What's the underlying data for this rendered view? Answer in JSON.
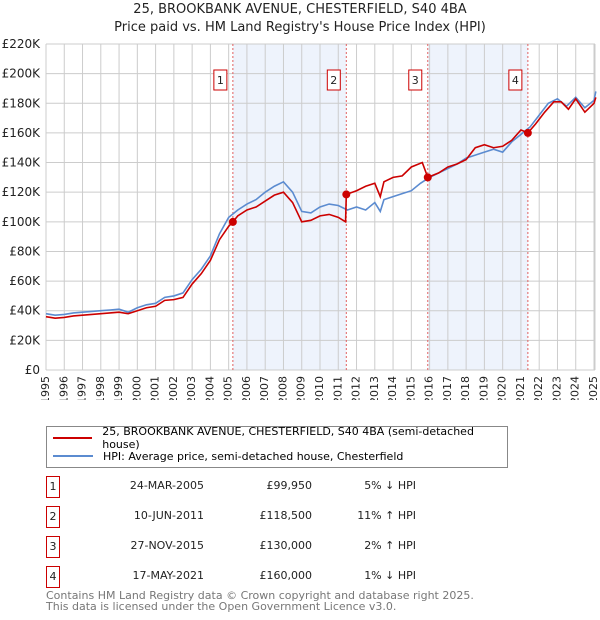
{
  "chart_data": {
    "type": "line",
    "title": "25, BROOKBANK AVENUE, CHESTERFIELD, S40 4BA",
    "subtitle": "Price paid vs. HM Land Registry's House Price Index (HPI)",
    "xlim": [
      1995,
      2025.2
    ],
    "ylim": [
      0,
      220000
    ],
    "yticks": [
      0,
      20000,
      40000,
      60000,
      80000,
      100000,
      120000,
      140000,
      160000,
      180000,
      200000,
      220000
    ],
    "ytick_labels": [
      "£0",
      "£20K",
      "£40K",
      "£60K",
      "£80K",
      "£100K",
      "£120K",
      "£140K",
      "£160K",
      "£180K",
      "£200K",
      "£220K"
    ],
    "xticks": [
      1995,
      1996,
      1997,
      1998,
      1999,
      2000,
      2001,
      2002,
      2003,
      2004,
      2005,
      2006,
      2007,
      2008,
      2009,
      2010,
      2011,
      2012,
      2013,
      2014,
      2015,
      2016,
      2017,
      2018,
      2019,
      2020,
      2021,
      2022,
      2023,
      2024,
      2025
    ],
    "grid": true,
    "shaded_ranges": [
      [
        2005.23,
        2011.44
      ],
      [
        2015.9,
        2021.38
      ]
    ],
    "series": [
      {
        "name": "25, BROOKBANK AVENUE, CHESTERFIELD, S40 4BA (semi-detached house)",
        "color": "#cc0000",
        "x": [
          1995,
          1995.5,
          1996,
          1996.5,
          1997,
          1997.5,
          1998,
          1998.5,
          1999,
          1999.5,
          2000,
          2000.5,
          2001,
          2001.5,
          2002,
          2002.5,
          2003,
          2003.5,
          2004,
          2004.5,
          2005,
          2005.23,
          2005.5,
          2006,
          2006.5,
          2007,
          2007.5,
          2008,
          2008.5,
          2009,
          2009.5,
          2010,
          2010.5,
          2011,
          2011.4,
          2011.44,
          2012,
          2012.5,
          2013,
          2013.3,
          2013.5,
          2014,
          2014.5,
          2015,
          2015.6,
          2015.9,
          2016.5,
          2017,
          2017.5,
          2018,
          2018.5,
          2019,
          2019.5,
          2020,
          2020.5,
          2021,
          2021.38,
          2021.8,
          2022.3,
          2022.8,
          2023.2,
          2023.6,
          2024,
          2024.5,
          2025,
          2025.1
        ],
        "y": [
          36000,
          35000,
          35500,
          36500,
          37000,
          37500,
          38000,
          38500,
          39000,
          38000,
          40000,
          42000,
          43000,
          47000,
          47500,
          49000,
          58000,
          65000,
          74000,
          88000,
          97000,
          99950,
          104000,
          108000,
          110000,
          114000,
          118000,
          120000,
          113000,
          100000,
          101000,
          104000,
          105000,
          103000,
          100000,
          118500,
          121000,
          124000,
          126000,
          117000,
          127000,
          130000,
          131000,
          137000,
          140000,
          130000,
          133000,
          137000,
          139000,
          142000,
          150000,
          152000,
          150000,
          151000,
          155000,
          162000,
          160000,
          166000,
          174000,
          181000,
          181000,
          176000,
          183000,
          174000,
          180000,
          184000
        ]
      },
      {
        "name": "HPI: Average price, semi-detached house, Chesterfield",
        "color": "#5b8bd0",
        "x": [
          1995,
          1995.5,
          1996,
          1996.5,
          1997,
          1997.5,
          1998,
          1998.5,
          1999,
          1999.5,
          2000,
          2000.5,
          2001,
          2001.5,
          2002,
          2002.5,
          2003,
          2003.5,
          2004,
          2004.5,
          2005,
          2005.5,
          2006,
          2006.5,
          2007,
          2007.5,
          2008,
          2008.5,
          2009,
          2009.5,
          2010,
          2010.5,
          2011,
          2011.5,
          2012,
          2012.5,
          2013,
          2013.3,
          2013.5,
          2014,
          2014.5,
          2015,
          2015.5,
          2016,
          2016.5,
          2017,
          2017.5,
          2018,
          2018.5,
          2019,
          2019.5,
          2020,
          2020.5,
          2021,
          2021.5,
          2022,
          2022.5,
          2023,
          2023.5,
          2024,
          2024.5,
          2025,
          2025.1
        ],
        "y": [
          38000,
          37000,
          37500,
          38500,
          39000,
          39500,
          40000,
          40500,
          41000,
          39000,
          42000,
          44000,
          45000,
          49000,
          50000,
          52000,
          61000,
          68000,
          77000,
          92000,
          103000,
          108000,
          112000,
          115000,
          120000,
          124000,
          127000,
          120000,
          107000,
          106000,
          110000,
          112000,
          111000,
          108000,
          110000,
          108000,
          113000,
          107000,
          115000,
          117000,
          119000,
          121000,
          126000,
          130000,
          133000,
          136000,
          139000,
          143000,
          145000,
          147000,
          149000,
          147000,
          154000,
          159000,
          164000,
          172000,
          180000,
          183000,
          178000,
          184000,
          177000,
          182000,
          188000
        ]
      }
    ],
    "sales": [
      {
        "label": "1",
        "x": 2005.23,
        "y": 99950
      },
      {
        "label": "2",
        "x": 2011.44,
        "y": 118500
      },
      {
        "label": "3",
        "x": 2015.9,
        "y": 130000
      },
      {
        "label": "4",
        "x": 2021.38,
        "y": 160000
      }
    ]
  },
  "table": [
    {
      "num": "1",
      "date": "24-MAR-2005",
      "price": "£99,950",
      "hpi": "5% ↓ HPI"
    },
    {
      "num": "2",
      "date": "10-JUN-2011",
      "price": "£118,500",
      "hpi": "11% ↑ HPI"
    },
    {
      "num": "3",
      "date": "27-NOV-2015",
      "price": "£130,000",
      "hpi": "2% ↑ HPI"
    },
    {
      "num": "4",
      "date": "17-MAY-2021",
      "price": "£160,000",
      "hpi": "1% ↓ HPI"
    }
  ],
  "footer": {
    "line1": "Contains HM Land Registry data © Crown copyright and database right 2025.",
    "line2": "This data is licensed under the Open Government Licence v3.0."
  }
}
